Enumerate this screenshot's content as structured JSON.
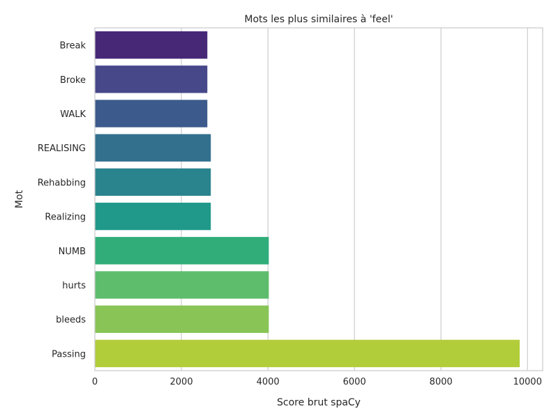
{
  "chart_data": {
    "type": "bar",
    "orientation": "horizontal",
    "title": "Mots les plus similaires à 'feel'",
    "xlabel": "Score brut spaCy",
    "ylabel": "Mot",
    "categories": [
      "Break",
      "Broke",
      "WALK",
      "REALISING",
      "Rehabbing",
      "Realizing",
      "NUMB",
      "hurts",
      "bleeds",
      "Passing"
    ],
    "values": [
      2600,
      2600,
      2600,
      2680,
      2680,
      2680,
      4020,
      4020,
      4020,
      9820
    ],
    "colors": [
      "#472877",
      "#47488a",
      "#3c5b8c",
      "#33708e",
      "#2a848e",
      "#21998a",
      "#31ad7a",
      "#5ebd6c",
      "#88c456",
      "#b2cd3a"
    ],
    "xlim": [
      0,
      10350
    ],
    "xticks": [
      0,
      2000,
      4000,
      6000,
      8000,
      10000
    ],
    "xtick_labels": [
      "0",
      "2000",
      "4000",
      "6000",
      "8000",
      "10000"
    ],
    "grid": "x",
    "palette": "viridis"
  }
}
